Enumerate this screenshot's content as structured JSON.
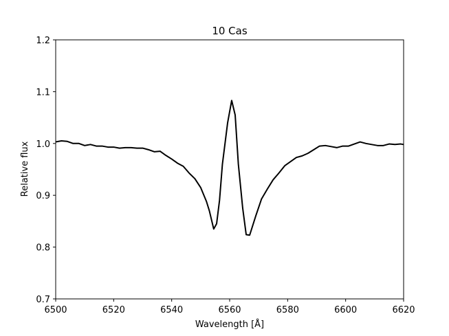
{
  "chart_data": {
    "type": "line",
    "title": "10 Cas",
    "x_label": "Wavelength [Å]",
    "y_label": "Relative flux",
    "series": [
      {
        "name": "10 Cas",
        "color": "#000000",
        "x": [
          6500,
          6502,
          6504,
          6506,
          6508,
          6510,
          6512,
          6514,
          6516,
          6518,
          6520,
          6522,
          6524,
          6526,
          6528,
          6530,
          6532,
          6534,
          6536,
          6538,
          6540,
          6542,
          6544,
          6546,
          6548,
          6550,
          6552,
          6553,
          6554.5,
          6555.5,
          6556.5,
          6557.5,
          6559.3,
          6560.7,
          6561.9,
          6563,
          6564.5,
          6565.7,
          6566.9,
          6569,
          6571,
          6573,
          6575,
          6577,
          6579,
          6581,
          6583,
          6585,
          6587,
          6589,
          6591,
          6593,
          6595,
          6597,
          6599,
          6601,
          6603,
          6605,
          6607,
          6609,
          6611,
          6613,
          6615,
          6617,
          6619,
          6620
        ],
        "values": [
          1.003,
          1.005,
          1.004,
          1.0,
          1.0,
          0.996,
          0.998,
          0.995,
          0.995,
          0.993,
          0.993,
          0.991,
          0.992,
          0.992,
          0.991,
          0.991,
          0.988,
          0.984,
          0.985,
          0.977,
          0.97,
          0.962,
          0.956,
          0.943,
          0.932,
          0.915,
          0.888,
          0.87,
          0.835,
          0.845,
          0.89,
          0.96,
          1.04,
          1.083,
          1.055,
          0.96,
          0.875,
          0.824,
          0.823,
          0.86,
          0.893,
          0.912,
          0.93,
          0.943,
          0.957,
          0.965,
          0.973,
          0.976,
          0.981,
          0.988,
          0.995,
          0.996,
          0.994,
          0.992,
          0.995,
          0.995,
          0.999,
          1.003,
          1.0,
          0.998,
          0.996,
          0.996,
          0.999,
          0.998,
          0.999,
          0.998
        ]
      }
    ],
    "xlim": [
      6500,
      6620
    ],
    "xticks": [
      6500,
      6520,
      6540,
      6560,
      6580,
      6600,
      6620
    ],
    "ylim": [
      0.7,
      1.2
    ],
    "yticks": [
      0.7,
      0.8,
      0.9,
      {
        "value": 1,
        "label": "1.0"
      },
      1.1,
      1.2
    ]
  }
}
